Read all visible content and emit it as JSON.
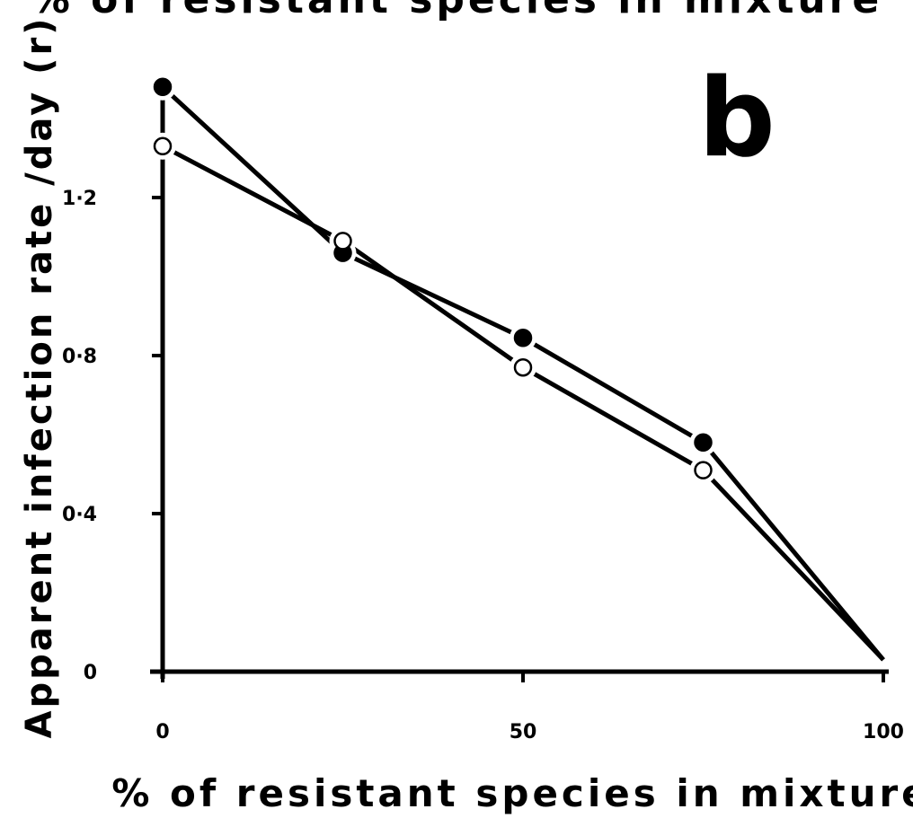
{
  "chart_data": {
    "type": "line",
    "title": "% of resistant species in mixture",
    "panel_label": "b",
    "x_label": "% of resistant species in mixture",
    "y_label": "Apparent infection rate /day (r)",
    "x": [
      0,
      25,
      50,
      75,
      100
    ],
    "series": [
      {
        "color": "#000000",
        "marker_fill": "#000000",
        "values": [
          1.48,
          1.06,
          0.845,
          0.58,
          0.03
        ]
      },
      {
        "color": "#000000",
        "marker_fill": "#ffffff",
        "values": [
          1.33,
          1.09,
          0.77,
          0.51,
          0.03
        ]
      }
    ],
    "xlim": [
      0,
      100
    ],
    "xticks": [
      0,
      50,
      100
    ],
    "ylim": [
      0,
      1.5
    ],
    "yticks": [
      0,
      {
        "value": 0.4,
        "label": "0·4"
      },
      {
        "value": 0.8,
        "label": "0·8"
      },
      {
        "value": 1.2,
        "label": "1·2"
      }
    ],
    "grid": false
  }
}
